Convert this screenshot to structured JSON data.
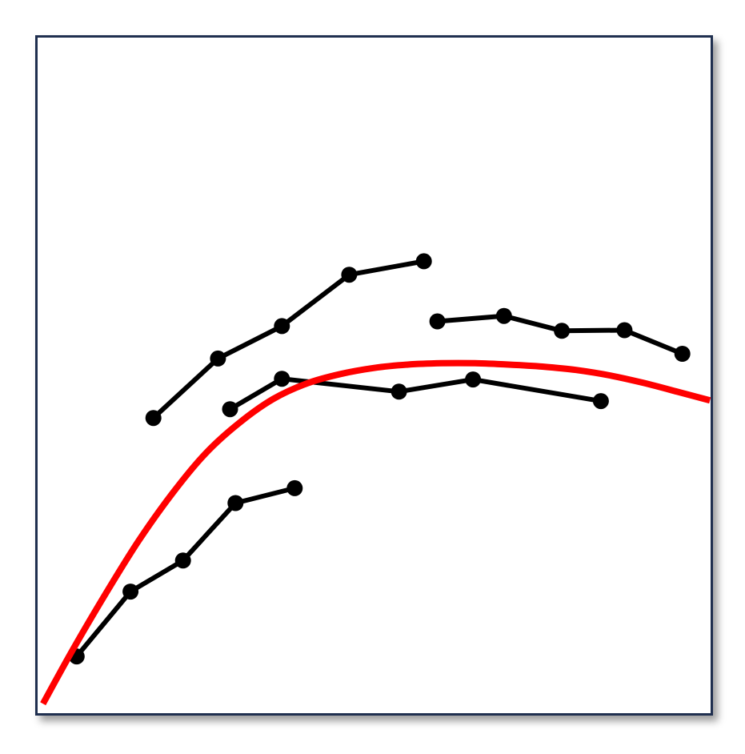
{
  "colors": {
    "frame": "#1f2f4f",
    "series": "#000000",
    "trend": "#ff0000",
    "background": "#ffffff"
  },
  "chart_data": {
    "type": "line",
    "title": "",
    "xlabel": "",
    "ylabel": "",
    "xlim": [
      0,
      100
    ],
    "ylim": [
      0,
      100
    ],
    "grid": false,
    "legend": "none",
    "axes_visible": false,
    "series": [
      {
        "values": [
          {
            "x": 5.8,
            "y": 8.4
          },
          {
            "x": 13.8,
            "y": 18.0
          },
          {
            "x": 21.6,
            "y": 22.6
          },
          {
            "x": 29.4,
            "y": 31.1
          },
          {
            "x": 38.2,
            "y": 33.3
          }
        ]
      },
      {
        "values": [
          {
            "x": 17.2,
            "y": 43.7
          },
          {
            "x": 26.8,
            "y": 52.5
          },
          {
            "x": 36.3,
            "y": 57.3
          },
          {
            "x": 46.3,
            "y": 64.9
          },
          {
            "x": 57.4,
            "y": 66.9
          }
        ]
      },
      {
        "values": [
          {
            "x": 28.6,
            "y": 45.0
          },
          {
            "x": 36.3,
            "y": 49.5
          },
          {
            "x": 53.7,
            "y": 47.6
          },
          {
            "x": 64.7,
            "y": 49.4
          },
          {
            "x": 83.7,
            "y": 46.2
          }
        ]
      },
      {
        "values": [
          {
            "x": 59.4,
            "y": 58.0
          },
          {
            "x": 69.3,
            "y": 58.8
          },
          {
            "x": 77.9,
            "y": 56.6
          },
          {
            "x": 87.2,
            "y": 56.7
          },
          {
            "x": 95.8,
            "y": 53.2
          }
        ]
      }
    ],
    "trend_line": {
      "values": [
        {
          "x": 0.8,
          "y": 1.4
        },
        {
          "x": 5.0,
          "y": 9.0
        },
        {
          "x": 10.0,
          "y": 17.5
        },
        {
          "x": 15.0,
          "y": 25.5
        },
        {
          "x": 20.0,
          "y": 32.5
        },
        {
          "x": 25.0,
          "y": 38.5
        },
        {
          "x": 30.0,
          "y": 43.0
        },
        {
          "x": 35.0,
          "y": 46.5
        },
        {
          "x": 40.0,
          "y": 48.8
        },
        {
          "x": 45.0,
          "y": 50.2
        },
        {
          "x": 50.0,
          "y": 51.1
        },
        {
          "x": 55.0,
          "y": 51.6
        },
        {
          "x": 60.0,
          "y": 51.8
        },
        {
          "x": 65.0,
          "y": 51.8
        },
        {
          "x": 70.0,
          "y": 51.6
        },
        {
          "x": 75.0,
          "y": 51.3
        },
        {
          "x": 80.0,
          "y": 50.8
        },
        {
          "x": 85.0,
          "y": 50.0
        },
        {
          "x": 90.0,
          "y": 48.9
        },
        {
          "x": 95.0,
          "y": 47.6
        },
        {
          "x": 99.9,
          "y": 46.3
        }
      ]
    }
  }
}
